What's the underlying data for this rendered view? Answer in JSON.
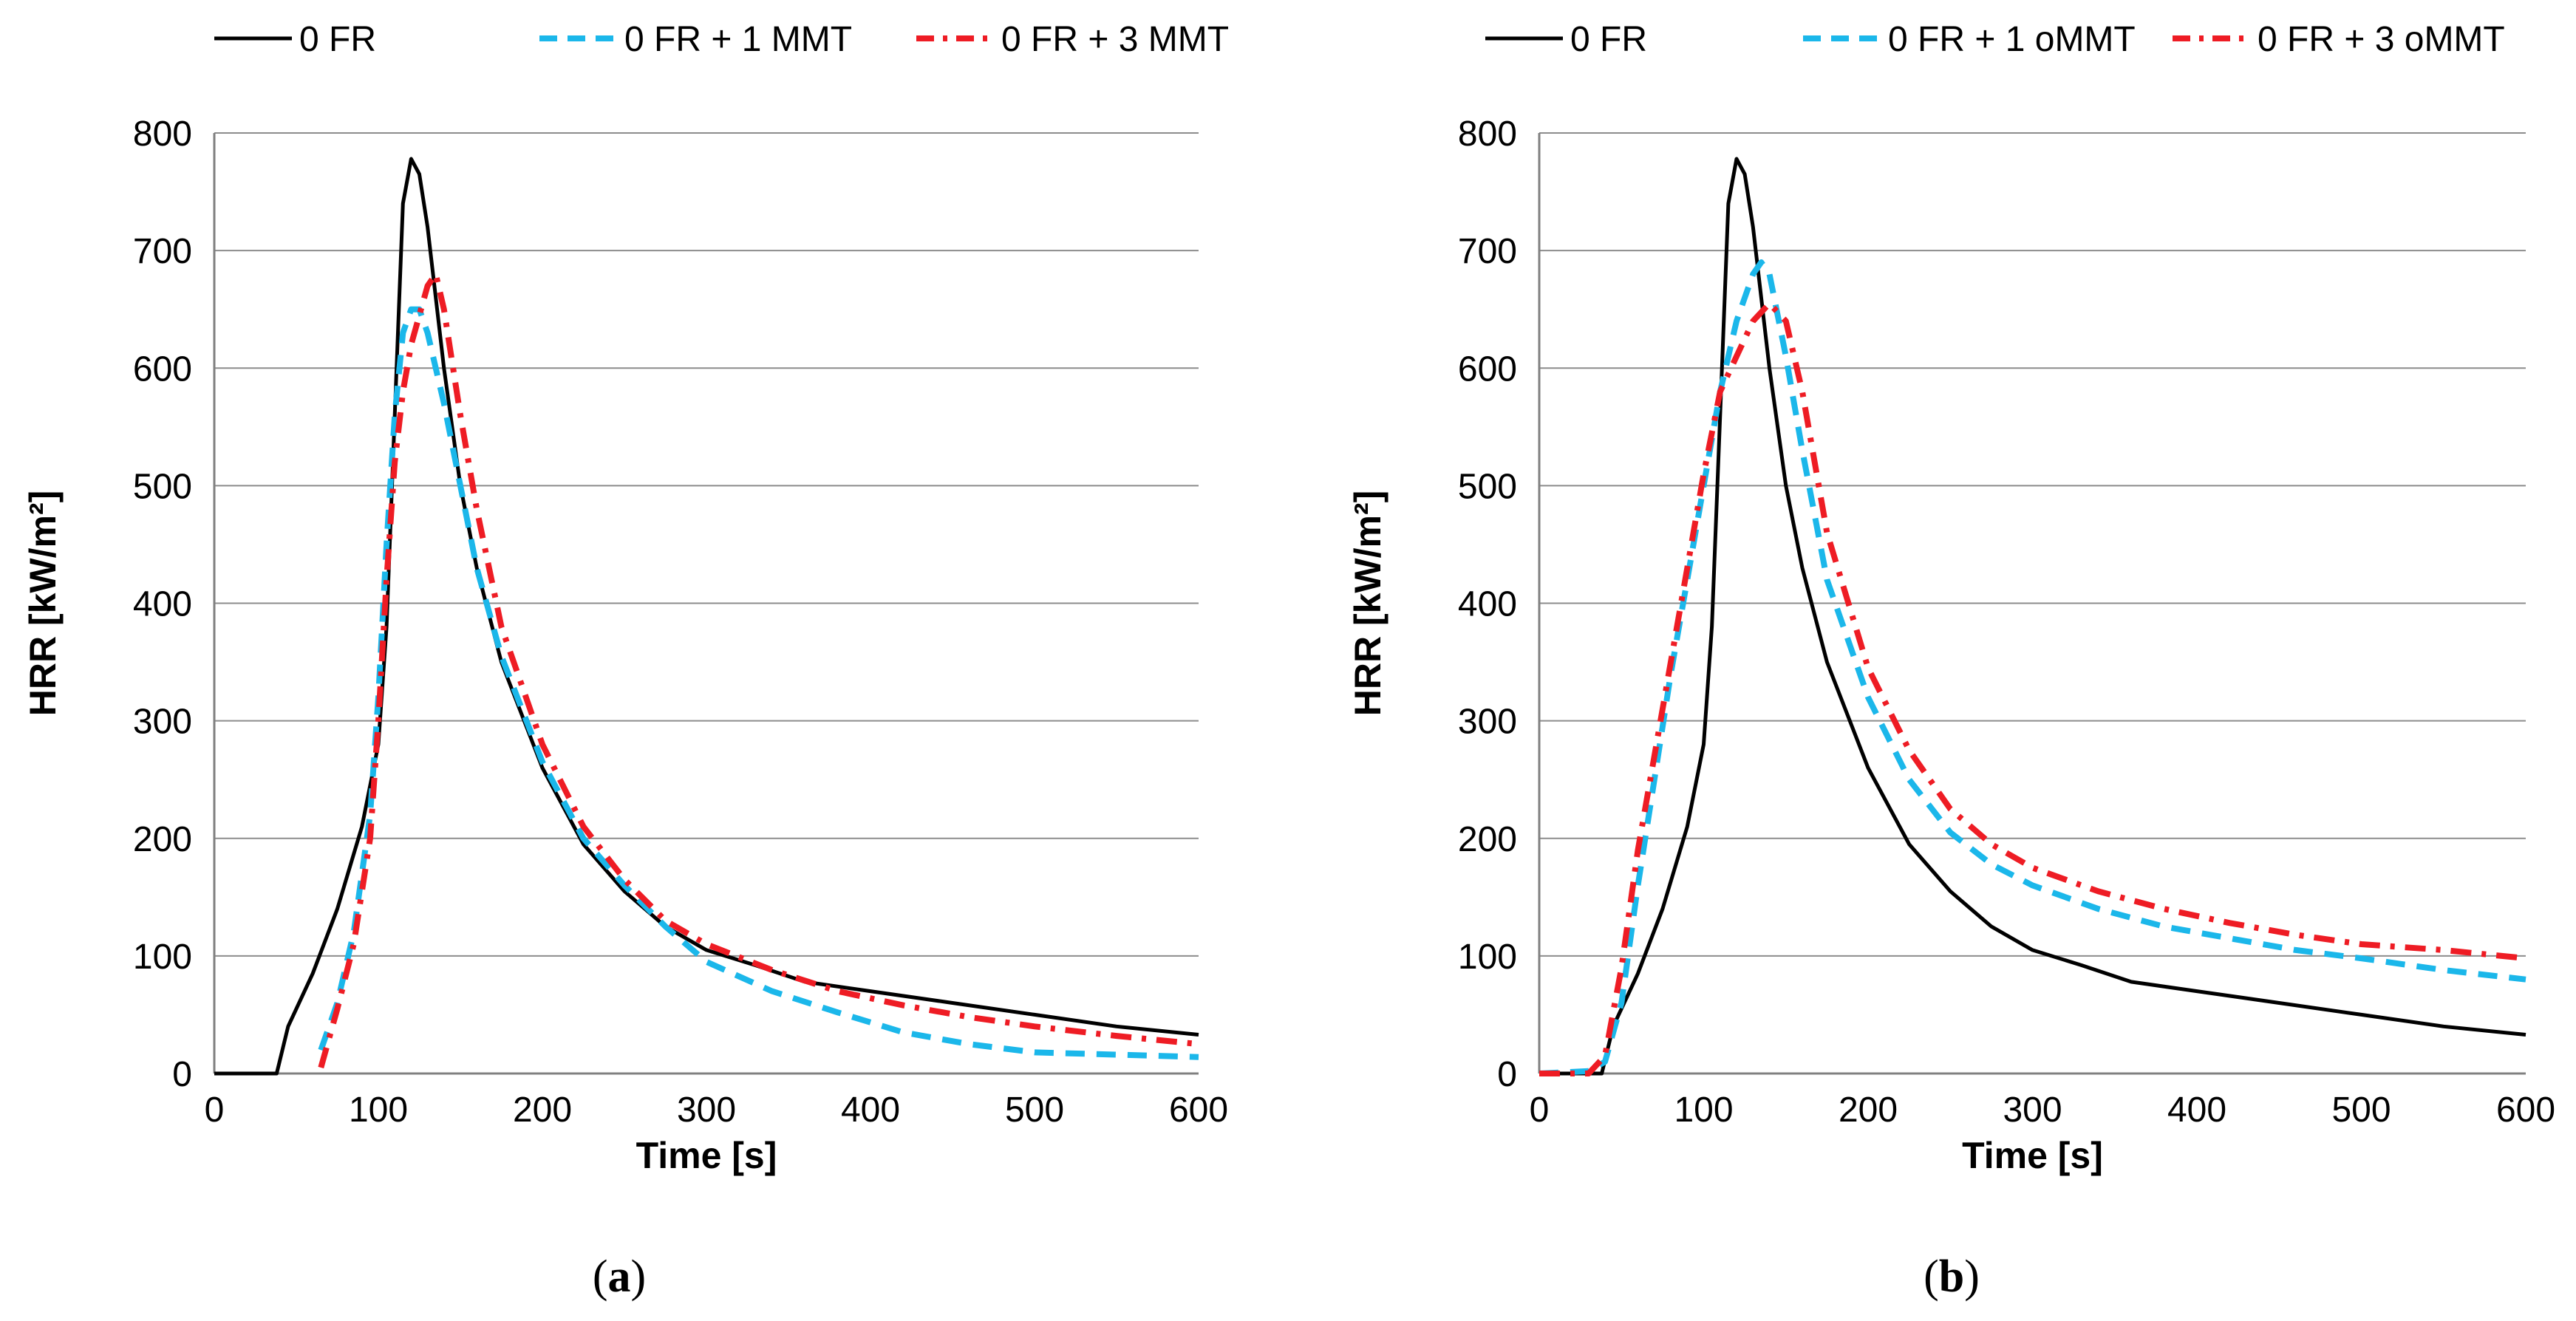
{
  "figure": {
    "panels": [
      {
        "caption_open": "(",
        "caption_letter": "a",
        "caption_close": ")"
      },
      {
        "caption_open": "(",
        "caption_letter": "b",
        "caption_close": ")"
      }
    ]
  },
  "chart_data": [
    {
      "type": "line",
      "title": "",
      "xlabel": "Time [s]",
      "ylabel": "HRR [kW/m²]",
      "xlim": [
        0,
        600
      ],
      "ylim": [
        0,
        800
      ],
      "xticks": [
        0,
        100,
        200,
        300,
        400,
        500,
        600
      ],
      "yticks": [
        0,
        100,
        200,
        300,
        400,
        500,
        600,
        700,
        800
      ],
      "grid": "horizontal",
      "legend_position": "top",
      "series": [
        {
          "name": "0 FR",
          "color": "#000000",
          "style": "solid",
          "points": [
            [
              0,
              0
            ],
            [
              38,
              0
            ],
            [
              45,
              40
            ],
            [
              60,
              85
            ],
            [
              75,
              140
            ],
            [
              90,
              210
            ],
            [
              100,
              280
            ],
            [
              105,
              380
            ],
            [
              110,
              560
            ],
            [
              115,
              740
            ],
            [
              120,
              778
            ],
            [
              125,
              765
            ],
            [
              130,
              720
            ],
            [
              140,
              600
            ],
            [
              150,
              500
            ],
            [
              160,
              430
            ],
            [
              175,
              350
            ],
            [
              200,
              260
            ],
            [
              225,
              195
            ],
            [
              250,
              155
            ],
            [
              275,
              125
            ],
            [
              300,
              105
            ],
            [
              330,
              92
            ],
            [
              360,
              78
            ],
            [
              400,
              70
            ],
            [
              450,
              60
            ],
            [
              500,
              50
            ],
            [
              550,
              40
            ],
            [
              600,
              33
            ]
          ]
        },
        {
          "name": "0 FR + 1 MMT",
          "color": "#1BB7EA",
          "style": "dashed",
          "points": [
            [
              65,
              20
            ],
            [
              75,
              60
            ],
            [
              85,
              120
            ],
            [
              95,
              220
            ],
            [
              100,
              320
            ],
            [
              105,
              450
            ],
            [
              110,
              560
            ],
            [
              115,
              630
            ],
            [
              120,
              650
            ],
            [
              125,
              650
            ],
            [
              130,
              630
            ],
            [
              140,
              570
            ],
            [
              150,
              500
            ],
            [
              160,
              430
            ],
            [
              175,
              355
            ],
            [
              200,
              265
            ],
            [
              225,
              200
            ],
            [
              250,
              160
            ],
            [
              275,
              125
            ],
            [
              300,
              95
            ],
            [
              340,
              70
            ],
            [
              380,
              52
            ],
            [
              420,
              35
            ],
            [
              460,
              25
            ],
            [
              500,
              18
            ],
            [
              550,
              16
            ],
            [
              600,
              14
            ]
          ]
        },
        {
          "name": "0 FR + 3 MMT",
          "color": "#EE1C24",
          "style": "dashdot",
          "points": [
            [
              65,
              5
            ],
            [
              75,
              55
            ],
            [
              85,
              110
            ],
            [
              95,
              200
            ],
            [
              100,
              300
            ],
            [
              105,
              420
            ],
            [
              110,
              520
            ],
            [
              115,
              580
            ],
            [
              120,
              620
            ],
            [
              130,
              670
            ],
            [
              135,
              680
            ],
            [
              140,
              650
            ],
            [
              150,
              560
            ],
            [
              160,
              480
            ],
            [
              175,
              380
            ],
            [
              200,
              280
            ],
            [
              225,
              210
            ],
            [
              250,
              165
            ],
            [
              275,
              130
            ],
            [
              300,
              110
            ],
            [
              340,
              88
            ],
            [
              380,
              70
            ],
            [
              420,
              58
            ],
            [
              460,
              48
            ],
            [
              500,
              40
            ],
            [
              550,
              32
            ],
            [
              600,
              25
            ]
          ]
        }
      ]
    },
    {
      "type": "line",
      "title": "",
      "xlabel": "Time [s]",
      "ylabel": "HRR [kW/m²]",
      "xlim": [
        0,
        600
      ],
      "ylim": [
        0,
        800
      ],
      "xticks": [
        0,
        100,
        200,
        300,
        400,
        500,
        600
      ],
      "yticks": [
        0,
        100,
        200,
        300,
        400,
        500,
        600,
        700,
        800
      ],
      "grid": "horizontal",
      "legend_position": "top",
      "series": [
        {
          "name": "0 FR",
          "color": "#000000",
          "style": "solid",
          "points": [
            [
              0,
              0
            ],
            [
              38,
              0
            ],
            [
              45,
              40
            ],
            [
              60,
              85
            ],
            [
              75,
              140
            ],
            [
              90,
              210
            ],
            [
              100,
              280
            ],
            [
              105,
              380
            ],
            [
              110,
              560
            ],
            [
              115,
              740
            ],
            [
              120,
              778
            ],
            [
              125,
              765
            ],
            [
              130,
              720
            ],
            [
              140,
              600
            ],
            [
              150,
              500
            ],
            [
              160,
              430
            ],
            [
              175,
              350
            ],
            [
              200,
              260
            ],
            [
              225,
              195
            ],
            [
              250,
              155
            ],
            [
              275,
              125
            ],
            [
              300,
              105
            ],
            [
              330,
              92
            ],
            [
              360,
              78
            ],
            [
              400,
              70
            ],
            [
              450,
              60
            ],
            [
              500,
              50
            ],
            [
              550,
              40
            ],
            [
              600,
              33
            ]
          ]
        },
        {
          "name": "0 FR + 1 oMMT",
          "color": "#1BB7EA",
          "style": "dashed",
          "points": [
            [
              0,
              0
            ],
            [
              30,
              2
            ],
            [
              40,
              10
            ],
            [
              50,
              60
            ],
            [
              60,
              160
            ],
            [
              70,
              250
            ],
            [
              80,
              340
            ],
            [
              90,
              420
            ],
            [
              100,
              500
            ],
            [
              110,
              580
            ],
            [
              120,
              640
            ],
            [
              130,
              680
            ],
            [
              135,
              690
            ],
            [
              140,
              680
            ],
            [
              150,
              610
            ],
            [
              160,
              530
            ],
            [
              175,
              420
            ],
            [
              200,
              320
            ],
            [
              225,
              250
            ],
            [
              250,
              205
            ],
            [
              275,
              178
            ],
            [
              300,
              160
            ],
            [
              340,
              140
            ],
            [
              380,
              125
            ],
            [
              420,
              115
            ],
            [
              460,
              105
            ],
            [
              500,
              98
            ],
            [
              550,
              88
            ],
            [
              600,
              80
            ]
          ]
        },
        {
          "name": "0 FR + 3 oMMT",
          "color": "#EE1C24",
          "style": "dashdot",
          "points": [
            [
              0,
              0
            ],
            [
              30,
              0
            ],
            [
              40,
              15
            ],
            [
              50,
              90
            ],
            [
              60,
              190
            ],
            [
              70,
              270
            ],
            [
              80,
              350
            ],
            [
              90,
              430
            ],
            [
              100,
              510
            ],
            [
              110,
              580
            ],
            [
              120,
              610
            ],
            [
              130,
              640
            ],
            [
              140,
              655
            ],
            [
              150,
              640
            ],
            [
              160,
              580
            ],
            [
              175,
              460
            ],
            [
              200,
              345
            ],
            [
              225,
              275
            ],
            [
              250,
              225
            ],
            [
              275,
              195
            ],
            [
              300,
              175
            ],
            [
              340,
              155
            ],
            [
              380,
              140
            ],
            [
              420,
              128
            ],
            [
              460,
              118
            ],
            [
              500,
              110
            ],
            [
              550,
              105
            ],
            [
              600,
              98
            ]
          ]
        }
      ]
    }
  ]
}
